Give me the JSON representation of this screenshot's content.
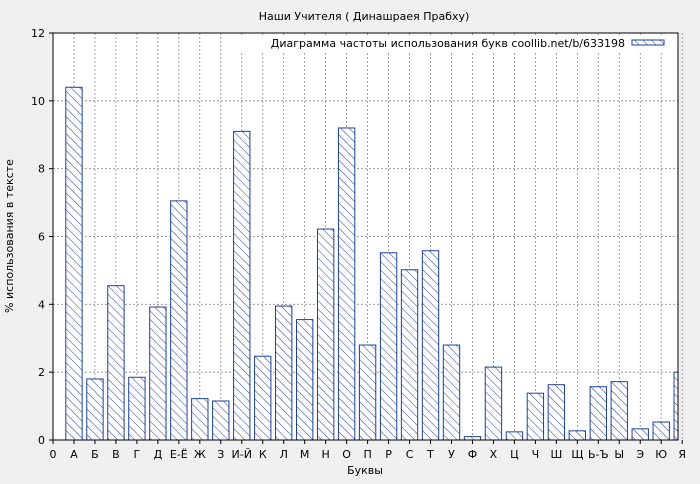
{
  "chart_data": {
    "type": "bar",
    "title": "Наши Учителя ( Динашраея Прабху)",
    "xlabel": "Буквы",
    "ylabel": "% использования в тексте",
    "ylim": [
      0,
      12
    ],
    "yticks": [
      0,
      2,
      4,
      6,
      8,
      10,
      12
    ],
    "x_first_tick_label": "0",
    "grid": true,
    "legend_position": "top-right",
    "colors": {
      "bar_stroke": "#1f3f9a",
      "bar_hatch": "#1f3f9a",
      "bar_fill": "#ffffff",
      "background": "#f0f0f0",
      "plot_bg": "#ffffff"
    },
    "categories": [
      "А",
      "Б",
      "В",
      "Г",
      "Д",
      "Е-Ё",
      "Ж",
      "З",
      "И-Й",
      "К",
      "Л",
      "М",
      "Н",
      "О",
      "П",
      "Р",
      "С",
      "Т",
      "У",
      "Ф",
      "Х",
      "Ц",
      "Ч",
      "Ш",
      "Щ",
      "Ь-Ъ",
      "Ы",
      "Э",
      "Ю",
      "Я"
    ],
    "series": [
      {
        "name": "Диаграмма частоты использования букв coollib.net/b/633198",
        "values": [
          10.4,
          1.8,
          4.55,
          1.85,
          3.92,
          7.05,
          1.22,
          1.15,
          9.1,
          2.47,
          3.95,
          3.55,
          6.22,
          9.2,
          2.8,
          5.52,
          5.02,
          5.58,
          2.8,
          0.1,
          2.15,
          0.24,
          1.38,
          1.63,
          0.27,
          1.57,
          1.72,
          0.33,
          0.53,
          2.0
        ]
      }
    ]
  }
}
